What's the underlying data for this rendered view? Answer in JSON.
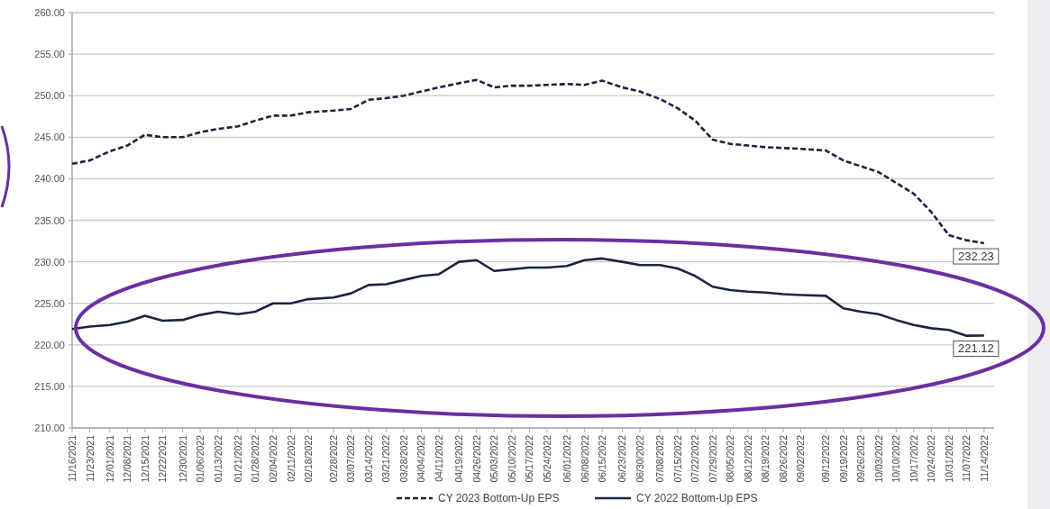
{
  "chart_data": {
    "type": "line",
    "x": [
      "2021-11-16",
      "2021-11-23",
      "2021-12-01",
      "2021-12-08",
      "2021-12-15",
      "2021-12-22",
      "2021-12-30",
      "2022-01-06",
      "2022-01-13",
      "2022-01-21",
      "2022-01-28",
      "2022-02-04",
      "2022-02-11",
      "2022-02-18",
      "2022-02-28",
      "2022-03-07",
      "2022-03-14",
      "2022-03-21",
      "2022-03-28",
      "2022-04-04",
      "2022-04-11",
      "2022-04-19",
      "2022-04-26",
      "2022-05-03",
      "2022-05-10",
      "2022-05-17",
      "2022-05-24",
      "2022-06-01",
      "2022-06-08",
      "2022-06-15",
      "2022-06-23",
      "2022-06-30",
      "2022-07-08",
      "2022-07-15",
      "2022-07-22",
      "2022-07-29",
      "2022-08-05",
      "2022-08-12",
      "2022-08-19",
      "2022-08-26",
      "2022-09-02",
      "2022-09-12",
      "2022-09-19",
      "2022-09-26",
      "2022-10-03",
      "2022-10-10",
      "2022-10-17",
      "2022-10-24",
      "2022-10-31",
      "2022-11-07",
      "2022-11-14"
    ],
    "series": [
      {
        "name": "CY 2023 Bottom-Up EPS",
        "color": "#1c2440",
        "line_style": "dashed",
        "values": [
          241.8,
          242.2,
          243.3,
          244.0,
          245.3,
          245.0,
          245.0,
          245.6,
          246.0,
          246.3,
          247.0,
          247.6,
          247.6,
          248.0,
          248.2,
          248.4,
          249.5,
          249.7,
          250.0,
          250.5,
          251.0,
          251.5,
          251.9,
          251.0,
          251.2,
          251.2,
          251.3,
          251.4,
          251.3,
          251.8,
          251.0,
          250.5,
          249.6,
          248.5,
          247.0,
          244.7,
          244.2,
          244.0,
          243.8,
          243.7,
          243.6,
          243.4,
          242.2,
          241.5,
          240.8,
          239.5,
          238.2,
          236.0,
          233.2,
          232.6,
          232.23
        ]
      },
      {
        "name": "CY 2022 Bottom-Up EPS",
        "color": "#1c2440",
        "line_style": "solid",
        "values": [
          221.9,
          222.2,
          222.4,
          222.8,
          223.5,
          222.9,
          223.0,
          223.6,
          224.0,
          223.7,
          224.0,
          225.0,
          225.0,
          225.5,
          225.7,
          226.2,
          227.2,
          227.3,
          227.8,
          228.3,
          228.5,
          230.0,
          230.2,
          228.9,
          229.1,
          229.3,
          229.3,
          229.5,
          230.2,
          230.4,
          230.0,
          229.6,
          229.6,
          229.2,
          228.3,
          227.0,
          226.6,
          226.4,
          226.3,
          226.1,
          226.0,
          225.9,
          224.4,
          224.0,
          223.7,
          223.0,
          222.4,
          222.0,
          221.8,
          221.1,
          221.12
        ]
      }
    ],
    "xlim": [
      "2021-11-16",
      "2022-11-18"
    ],
    "xticks": [
      {
        "value": "2021-11-16",
        "label": "11/16/2021"
      },
      {
        "value": "2021-11-23",
        "label": "11/23/2021"
      },
      {
        "value": "2021-12-01",
        "label": "12/01/2021"
      },
      {
        "value": "2021-12-08",
        "label": "12/08/2021"
      },
      {
        "value": "2021-12-15",
        "label": "12/15/2021"
      },
      {
        "value": "2021-12-22",
        "label": "12/22/2021"
      },
      {
        "value": "2021-12-30",
        "label": "12/30/2021"
      },
      {
        "value": "2022-01-06",
        "label": "01/06/2022"
      },
      {
        "value": "2022-01-13",
        "label": "01/13/2022"
      },
      {
        "value": "2022-01-21",
        "label": "01/21/2022"
      },
      {
        "value": "2022-01-28",
        "label": "01/28/2022"
      },
      {
        "value": "2022-02-04",
        "label": "02/04/2022"
      },
      {
        "value": "2022-02-11",
        "label": "02/11/2022"
      },
      {
        "value": "2022-02-18",
        "label": "02/18/2022"
      },
      {
        "value": "2022-02-28",
        "label": "02/28/2022"
      },
      {
        "value": "2022-03-07",
        "label": "03/07/2022"
      },
      {
        "value": "2022-03-14",
        "label": "03/14/2022"
      },
      {
        "value": "2022-03-21",
        "label": "03/21/2022"
      },
      {
        "value": "2022-03-28",
        "label": "03/28/2022"
      },
      {
        "value": "2022-04-04",
        "label": "04/04/2022"
      },
      {
        "value": "2022-04-11",
        "label": "04/11/2022"
      },
      {
        "value": "2022-04-19",
        "label": "04/19/2022"
      },
      {
        "value": "2022-04-26",
        "label": "04/26/2022"
      },
      {
        "value": "2022-05-03",
        "label": "05/03/2022"
      },
      {
        "value": "2022-05-10",
        "label": "05/10/2022"
      },
      {
        "value": "2022-05-17",
        "label": "05/17/2022"
      },
      {
        "value": "2022-05-24",
        "label": "05/24/2022"
      },
      {
        "value": "2022-06-01",
        "label": "06/01/2022"
      },
      {
        "value": "2022-06-08",
        "label": "06/08/2022"
      },
      {
        "value": "2022-06-15",
        "label": "06/15/2022"
      },
      {
        "value": "2022-06-23",
        "label": "06/23/2022"
      },
      {
        "value": "2022-06-30",
        "label": "06/30/2022"
      },
      {
        "value": "2022-07-08",
        "label": "07/08/2022"
      },
      {
        "value": "2022-07-15",
        "label": "07/15/2022"
      },
      {
        "value": "2022-07-22",
        "label": "07/22/2022"
      },
      {
        "value": "2022-07-29",
        "label": "07/29/2022"
      },
      {
        "value": "2022-08-05",
        "label": "08/05/2022"
      },
      {
        "value": "2022-08-12",
        "label": "08/12/2022"
      },
      {
        "value": "2022-08-19",
        "label": "08/19/2022"
      },
      {
        "value": "2022-08-26",
        "label": "08/26/2022"
      },
      {
        "value": "2022-09-02",
        "label": "09/02/2022"
      },
      {
        "value": "2022-09-12",
        "label": "09/12/2022"
      },
      {
        "value": "2022-09-19",
        "label": "09/19/2022"
      },
      {
        "value": "2022-09-26",
        "label": "09/26/2022"
      },
      {
        "value": "2022-10-03",
        "label": "10/03/2022"
      },
      {
        "value": "2022-10-10",
        "label": "10/10/2022"
      },
      {
        "value": "2022-10-17",
        "label": "10/17/2022"
      },
      {
        "value": "2022-10-24",
        "label": "10/24/2022"
      },
      {
        "value": "2022-10-31",
        "label": "10/31/2022"
      },
      {
        "value": "2022-11-07",
        "label": "11/07/2022"
      },
      {
        "value": "2022-11-14",
        "label": "11/14/2022"
      }
    ],
    "ylim": [
      210,
      260
    ],
    "yticks": [
      {
        "value": 210,
        "label": "210.00"
      },
      {
        "value": 215,
        "label": "215.00"
      },
      {
        "value": 220,
        "label": "220.00"
      },
      {
        "value": 225,
        "label": "225.00"
      },
      {
        "value": 230,
        "label": "230.00"
      },
      {
        "value": 235,
        "label": "235.00"
      },
      {
        "value": 240,
        "label": "240.00"
      },
      {
        "value": 245,
        "label": "245.00"
      },
      {
        "value": 250,
        "label": "250.00"
      },
      {
        "value": 255,
        "label": "255.00"
      },
      {
        "value": 260,
        "label": "260.00"
      }
    ],
    "grid": "y",
    "legend": "bottom",
    "annotations": [
      {
        "text": "232.23",
        "x": "2022-11-14",
        "y": 232.23
      },
      {
        "text": "221.12",
        "x": "2022-11-14",
        "y": 221.12
      }
    ]
  }
}
